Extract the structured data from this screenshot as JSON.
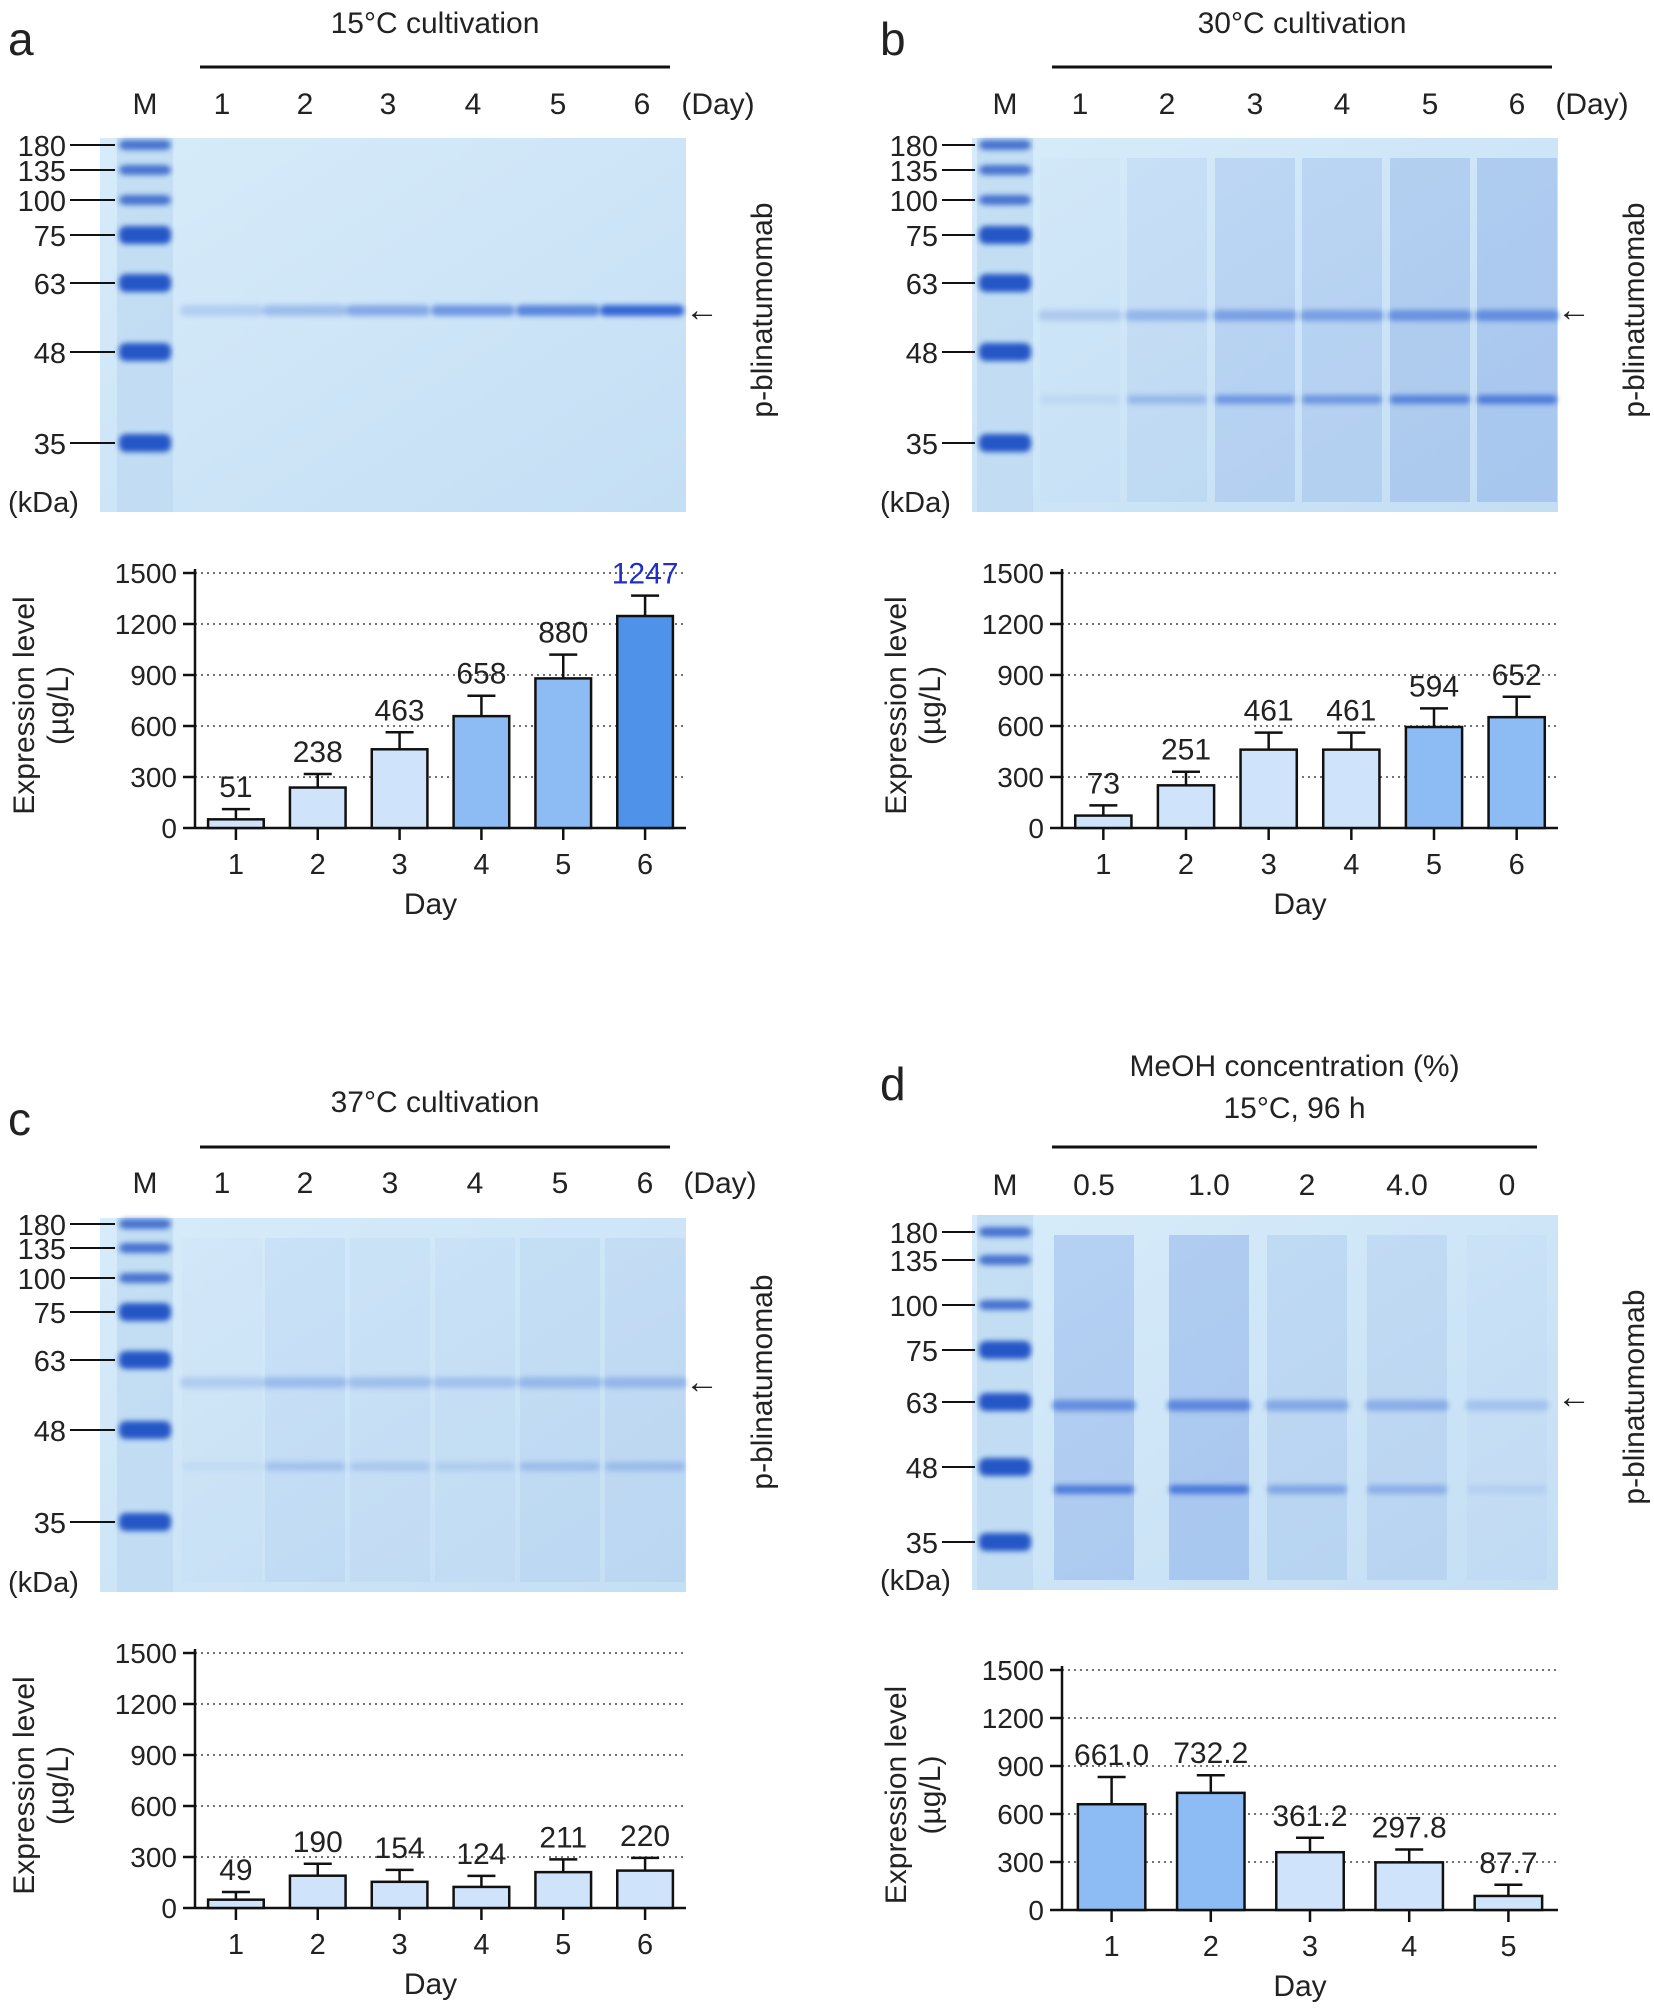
{
  "figure": {
    "colors": {
      "gel_background": "#cfe6f7",
      "gel_stain": "#2a5fd2",
      "marker_band": "#1f4fc4",
      "bar_dark": "#4f92ea",
      "bar_mid": "#8cbcf3",
      "bar_light": "#cfe3fb",
      "highlight_label": "#1f2fc4",
      "text": "#222222"
    },
    "panels": [
      {
        "letter": "a",
        "gel": {
          "header": [
            "15°C cultivation"
          ],
          "lane_labels": [
            "M",
            "1",
            "2",
            "3",
            "4",
            "5",
            "6",
            "(Day)"
          ],
          "markers": [
            "180",
            "135",
            "100",
            "75",
            "63",
            "48",
            "35"
          ],
          "unit": "(kDa)",
          "target": "p-blinatumomab",
          "arrow_symbol": "←"
        },
        "chart_data": {
          "type": "bar",
          "categories": [
            "1",
            "2",
            "3",
            "4",
            "5",
            "6"
          ],
          "values": [
            51,
            238,
            463,
            658,
            880,
            1247
          ],
          "errors": [
            60,
            80,
            100,
            120,
            140,
            120
          ],
          "data_labels": [
            "51",
            "238",
            "463",
            "658",
            "880",
            "1247"
          ],
          "bar_shades": [
            "light",
            "light",
            "light",
            "mid",
            "mid",
            "dark"
          ],
          "highlight_index": 5,
          "xlabel": "Day",
          "ylabel": [
            "Expression level",
            "(µg/L)"
          ],
          "ylim": [
            0,
            1500
          ],
          "yticks": [
            "0",
            "300",
            "600",
            "900",
            "1200",
            "1500"
          ],
          "grid": "dotted"
        }
      },
      {
        "letter": "b",
        "gel": {
          "header": [
            "30°C cultivation"
          ],
          "lane_labels": [
            "M",
            "1",
            "2",
            "3",
            "4",
            "5",
            "6",
            "(Day)"
          ],
          "markers": [
            "180",
            "135",
            "100",
            "75",
            "63",
            "48",
            "35"
          ],
          "unit": "(kDa)",
          "target": "p-blinatumomab",
          "arrow_symbol": "←"
        },
        "chart_data": {
          "type": "bar",
          "categories": [
            "1",
            "2",
            "3",
            "4",
            "5",
            "6"
          ],
          "values": [
            73,
            251,
            461,
            461,
            594,
            652
          ],
          "errors": [
            60,
            80,
            100,
            100,
            110,
            120
          ],
          "data_labels": [
            "73",
            "251",
            "461",
            "461",
            "594",
            "652"
          ],
          "bar_shades": [
            "light",
            "light",
            "light",
            "light",
            "mid",
            "mid"
          ],
          "xlabel": "Day",
          "ylabel": [
            "Expression level",
            "(µg/L)"
          ],
          "ylim": [
            0,
            1500
          ],
          "yticks": [
            "0",
            "300",
            "600",
            "900",
            "1200",
            "1500"
          ],
          "grid": "dotted"
        }
      },
      {
        "letter": "c",
        "gel": {
          "header": [
            "37°C cultivation"
          ],
          "lane_labels": [
            "M",
            "1",
            "2",
            "3",
            "4",
            "5",
            "6",
            "(Day)"
          ],
          "markers": [
            "180",
            "135",
            "100",
            "75",
            "63",
            "48",
            "35"
          ],
          "unit": "(kDa)",
          "target": "p-blinatumomab",
          "arrow_symbol": "←"
        },
        "chart_data": {
          "type": "bar",
          "categories": [
            "1",
            "2",
            "3",
            "4",
            "5",
            "6"
          ],
          "values": [
            49,
            190,
            154,
            124,
            211,
            220
          ],
          "errors": [
            45,
            70,
            70,
            65,
            75,
            75
          ],
          "data_labels": [
            "49",
            "190",
            "154",
            "124",
            "211",
            "220"
          ],
          "bar_shades": [
            "light",
            "light",
            "light",
            "light",
            "light",
            "light"
          ],
          "xlabel": "Day",
          "ylabel": [
            "Expression level",
            "(µg/L)"
          ],
          "ylim": [
            0,
            1500
          ],
          "yticks": [
            "0",
            "300",
            "600",
            "900",
            "1200",
            "1500"
          ],
          "grid": "dotted"
        }
      },
      {
        "letter": "d",
        "gel": {
          "header": [
            "MeOH concentration (%)",
            "15°C, 96 h"
          ],
          "lane_labels": [
            "M",
            "0.5",
            "1.0",
            "2",
            "4.0",
            "0"
          ],
          "markers": [
            "180",
            "135",
            "100",
            "75",
            "63",
            "48",
            "35"
          ],
          "unit": "(kDa)",
          "target": "p-blinatumomab",
          "arrow_symbol": "←"
        },
        "chart_data": {
          "type": "bar",
          "categories": [
            "1",
            "2",
            "3",
            "4",
            "5"
          ],
          "values": [
            661.0,
            732.2,
            361.2,
            297.8,
            87.7
          ],
          "errors": [
            170,
            110,
            90,
            80,
            70
          ],
          "data_labels": [
            "661.0",
            "732.2",
            "361.2",
            "297.8",
            "87.7"
          ],
          "bar_shades": [
            "mid",
            "mid",
            "light",
            "light",
            "light"
          ],
          "xlabel": "Day",
          "ylabel": [
            "Expression level",
            "(µg/L)"
          ],
          "ylim": [
            0,
            1500
          ],
          "yticks": [
            "0",
            "300",
            "600",
            "900",
            "1200",
            "1500"
          ],
          "grid": "dotted"
        }
      }
    ]
  }
}
